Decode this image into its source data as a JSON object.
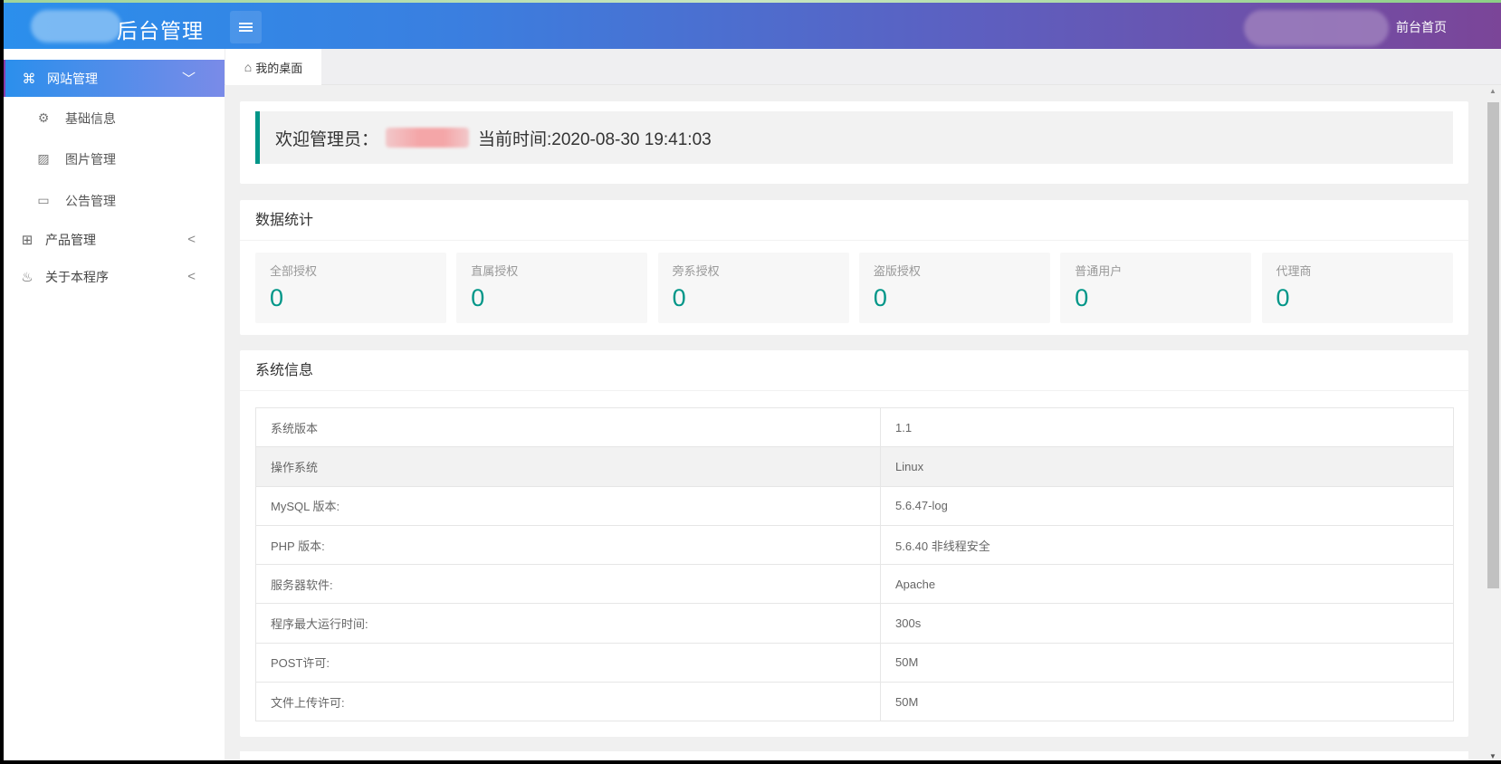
{
  "header": {
    "logo_text": "后台管理",
    "front_link": "前台首页"
  },
  "sidebar": {
    "items": [
      {
        "label": "网站管理",
        "icon": "cluster-icon",
        "active": true,
        "expanded": true
      },
      {
        "label": "基础信息",
        "icon": "gear-icon"
      },
      {
        "label": "图片管理",
        "icon": "image-icon"
      },
      {
        "label": "公告管理",
        "icon": "message-icon"
      },
      {
        "label": "产品管理",
        "icon": "gift-icon"
      },
      {
        "label": "关于本程序",
        "icon": "fire-icon"
      }
    ]
  },
  "tabs": [
    {
      "label": "我的桌面",
      "icon": "home-icon"
    }
  ],
  "welcome": {
    "prefix": "欢迎管理员：",
    "time_label": "当前时间:2020-08-30 19:41:03"
  },
  "stats": {
    "title": "数据统计",
    "items": [
      {
        "label": "全部授权",
        "value": "0"
      },
      {
        "label": "直属授权",
        "value": "0"
      },
      {
        "label": "旁系授权",
        "value": "0"
      },
      {
        "label": "盗版授权",
        "value": "0"
      },
      {
        "label": "普通用户",
        "value": "0"
      },
      {
        "label": "代理商",
        "value": "0"
      }
    ]
  },
  "system": {
    "title": "系统信息",
    "rows": [
      {
        "key": "系统版本",
        "value": "1.1"
      },
      {
        "key": "操作系统",
        "value": "Linux"
      },
      {
        "key": "MySQL 版本:",
        "value": "5.6.47-log"
      },
      {
        "key": "PHP 版本:",
        "value": "5.6.40 非线程安全"
      },
      {
        "key": "服务器软件:",
        "value": "Apache"
      },
      {
        "key": "程序最大运行时间:",
        "value": "300s"
      },
      {
        "key": "POST许可:",
        "value": "50M"
      },
      {
        "key": "文件上传许可:",
        "value": "50M"
      }
    ]
  },
  "colors": {
    "accent": "#009688",
    "header_start": "#2b8fec",
    "header_end": "#7b4598"
  }
}
